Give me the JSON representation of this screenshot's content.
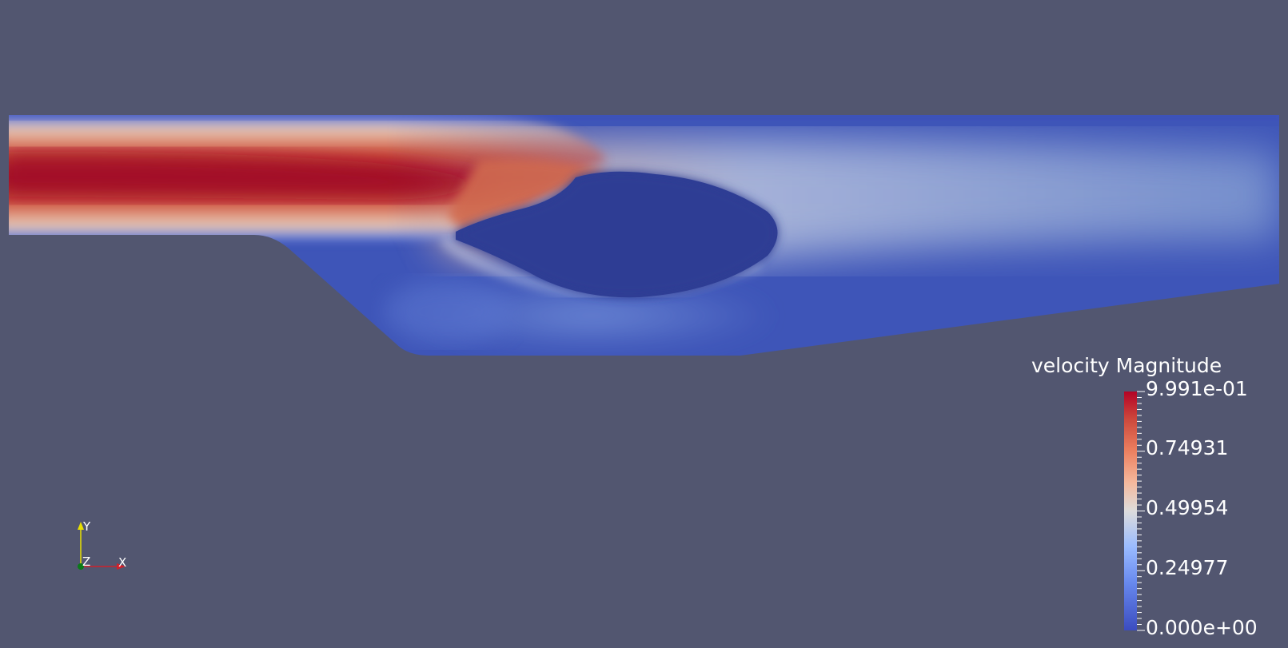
{
  "legend": {
    "title": "velocity Magnitude",
    "labels": [
      "9.991e-01",
      "0.74931",
      "0.49954",
      "0.24977",
      "0.000e+00"
    ]
  },
  "orientation_axes": {
    "y_label": "Y",
    "z_label": "Z",
    "x_label": "X"
  },
  "colors": {
    "background": "#525670",
    "colormap_low": "#3b4cc0",
    "colormap_mid": "#dddcdc",
    "colormap_high": "#b40426",
    "x_axis": "#d0202a",
    "y_axis": "#e8e000",
    "z_axis": "#0a7a18"
  }
}
